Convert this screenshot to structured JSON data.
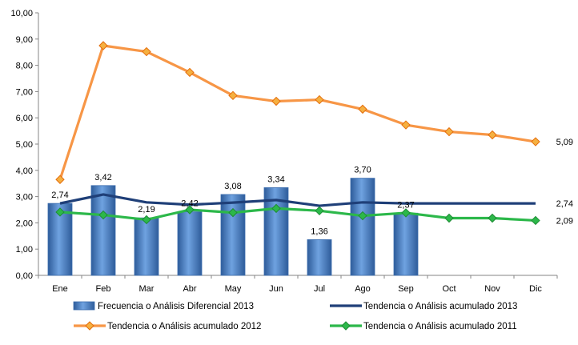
{
  "chart_data": {
    "type": "bar",
    "categories": [
      "Ene",
      "Feb",
      "Mar",
      "Abr",
      "May",
      "Jun",
      "Jul",
      "Ago",
      "Sep",
      "Oct",
      "Nov",
      "Dic"
    ],
    "ylim": [
      0,
      10
    ],
    "y_ticks": [
      "0,00",
      "1,00",
      "2,00",
      "3,00",
      "4,00",
      "5,00",
      "6,00",
      "7,00",
      "8,00",
      "9,00",
      "10,00"
    ],
    "grid": false,
    "legend_position": "bottom",
    "series": [
      {
        "name": "Frecuencia o Análisis Diferencial 2013",
        "type": "bar",
        "color": "#4A7EBB",
        "values": [
          2.74,
          3.42,
          2.19,
          2.42,
          3.08,
          3.34,
          1.36,
          3.7,
          2.37,
          null,
          null,
          null
        ],
        "labels": [
          "2,74",
          "3,42",
          "2,19",
          "2,42",
          "3,08",
          "3,34",
          "1,36",
          "3,70",
          "2,37",
          null,
          null,
          null
        ]
      },
      {
        "name": "Tendencia o Análisis acumulado 2013",
        "type": "line",
        "color": "#1F3F78",
        "values": [
          2.74,
          3.08,
          2.78,
          2.69,
          2.77,
          2.87,
          2.65,
          2.78,
          2.74,
          2.74,
          2.74,
          2.74
        ],
        "end_label": "2,74"
      },
      {
        "name": "Tendencia o Análisis acumulado 2012",
        "type": "line",
        "color": "#F79646",
        "marker_color": "#F5B041",
        "values": [
          3.65,
          8.75,
          8.52,
          7.73,
          6.85,
          6.63,
          6.69,
          6.33,
          5.73,
          5.47,
          5.35,
          5.09
        ],
        "end_label": "5,09"
      },
      {
        "name": "Tendencia o Análisis acumulado 2011",
        "type": "line",
        "color": "#2CB84A",
        "values": [
          2.41,
          2.3,
          2.12,
          2.5,
          2.39,
          2.55,
          2.46,
          2.27,
          2.38,
          2.18,
          2.18,
          2.09
        ],
        "end_label": "2,09"
      }
    ]
  }
}
